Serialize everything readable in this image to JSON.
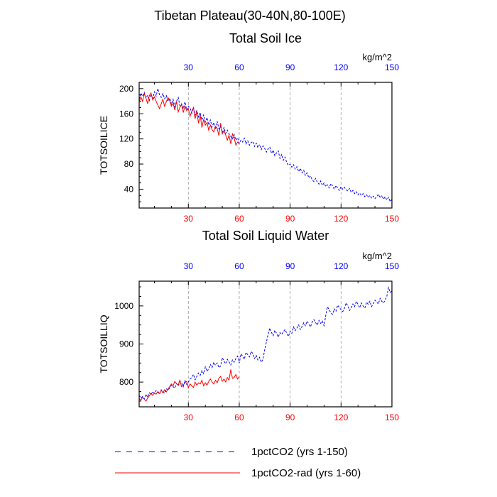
{
  "figure": {
    "main_title": "Tibetan Plateau(30-40N,80-100E)"
  },
  "chart_data": [
    {
      "type": "line",
      "title": "Total Soil Ice",
      "ylabel": "TOTSOILICE",
      "units": "kg/m^2",
      "xlim": [
        1,
        150
      ],
      "ylim": [
        10,
        210
      ],
      "xticks": [
        30,
        60,
        90,
        120,
        150
      ],
      "yticks": [
        40,
        80,
        120,
        160,
        200
      ],
      "top_axis_color": "#0000ff",
      "bottom_axis_color": "#ff0000",
      "grid_x": true,
      "series": [
        {
          "name": "1pctCO2 (yrs 1-150)",
          "color": "#0000ff",
          "dash": "dashed",
          "x": [
            1,
            2,
            3,
            4,
            5,
            6,
            7,
            8,
            9,
            10,
            11,
            12,
            13,
            14,
            15,
            16,
            17,
            18,
            19,
            20,
            21,
            22,
            23,
            24,
            25,
            26,
            27,
            28,
            29,
            30,
            31,
            32,
            33,
            34,
            35,
            36,
            37,
            38,
            39,
            40,
            41,
            42,
            43,
            44,
            45,
            46,
            47,
            48,
            49,
            50,
            51,
            52,
            53,
            54,
            55,
            56,
            57,
            58,
            59,
            60,
            61,
            62,
            63,
            64,
            65,
            66,
            67,
            68,
            69,
            70,
            71,
            72,
            73,
            74,
            75,
            76,
            77,
            78,
            79,
            80,
            81,
            82,
            83,
            84,
            85,
            86,
            87,
            88,
            89,
            90,
            91,
            92,
            93,
            94,
            95,
            96,
            97,
            98,
            99,
            100,
            101,
            102,
            103,
            104,
            105,
            106,
            107,
            108,
            109,
            110,
            111,
            112,
            113,
            114,
            115,
            116,
            117,
            118,
            119,
            120,
            121,
            122,
            123,
            124,
            125,
            126,
            127,
            128,
            129,
            130,
            131,
            132,
            133,
            134,
            135,
            136,
            137,
            138,
            139,
            140,
            141,
            142,
            143,
            144,
            145,
            146,
            147,
            148,
            149,
            150
          ],
          "y": [
            183,
            193,
            188,
            194,
            185,
            189,
            181,
            191,
            184,
            195,
            188,
            200,
            190,
            186,
            192,
            184,
            189,
            180,
            185,
            175,
            183,
            171,
            180,
            186,
            173,
            176,
            168,
            179,
            166,
            172,
            169,
            161,
            170,
            158,
            165,
            155,
            162,
            150,
            158,
            147,
            154,
            142,
            150,
            139,
            146,
            135,
            148,
            136,
            140,
            130,
            138,
            129,
            134,
            128,
            124,
            120,
            127,
            118,
            122,
            113,
            118,
            115,
            121,
            112,
            117,
            110,
            114,
            116,
            108,
            113,
            106,
            111,
            103,
            109,
            105,
            99,
            104,
            107,
            97,
            102,
            93,
            98,
            101,
            89,
            95,
            86,
            91,
            82,
            78,
            80,
            75,
            79,
            72,
            76,
            68,
            73,
            66,
            70,
            62,
            66,
            58,
            61,
            55,
            52,
            57,
            51,
            48,
            53,
            46,
            50,
            44,
            47,
            42,
            49,
            45,
            40,
            46,
            42,
            38,
            44,
            40,
            43,
            39,
            37,
            41,
            35,
            38,
            33,
            36,
            31,
            34,
            30,
            33,
            28,
            31,
            27,
            30,
            26,
            29,
            25,
            28,
            32,
            26,
            30,
            24,
            28,
            23,
            27,
            20,
            24
          ]
        },
        {
          "name": "1pctCO2-rad (yrs 1-60)",
          "color": "#ff0000",
          "dash": "solid",
          "x": [
            1,
            2,
            3,
            4,
            5,
            6,
            7,
            8,
            9,
            10,
            11,
            12,
            13,
            14,
            15,
            16,
            17,
            18,
            19,
            20,
            21,
            22,
            23,
            24,
            25,
            26,
            27,
            28,
            29,
            30,
            31,
            32,
            33,
            34,
            35,
            36,
            37,
            38,
            39,
            40,
            41,
            42,
            43,
            44,
            45,
            46,
            47,
            48,
            49,
            50,
            51,
            52,
            53,
            54,
            55,
            56,
            57,
            58,
            59,
            60
          ],
          "y": [
            178,
            187,
            180,
            192,
            185,
            176,
            189,
            193,
            182,
            187,
            180,
            174,
            168,
            176,
            183,
            172,
            179,
            186,
            181,
            172,
            177,
            166,
            180,
            163,
            170,
            175,
            162,
            172,
            165,
            168,
            156,
            164,
            170,
            152,
            163,
            145,
            158,
            138,
            151,
            142,
            146,
            134,
            142,
            135,
            131,
            140,
            137,
            125,
            145,
            128,
            133,
            126,
            118,
            126,
            112,
            128,
            122,
            110,
            115,
            112
          ]
        }
      ]
    },
    {
      "type": "line",
      "title": "Total Soil Liquid Water",
      "ylabel": "TOTSOILLIQ",
      "units": "kg/m^2",
      "xlim": [
        1,
        150
      ],
      "ylim": [
        735,
        1065
      ],
      "xticks": [
        30,
        60,
        90,
        120,
        150
      ],
      "yticks": [
        800,
        900,
        1000
      ],
      "top_axis_color": "#0000ff",
      "bottom_axis_color": "#ff0000",
      "grid_x": true,
      "series": [
        {
          "name": "1pctCO2 (yrs 1-150)",
          "color": "#0000ff",
          "dash": "dashed",
          "x": [
            1,
            2,
            3,
            4,
            5,
            6,
            7,
            8,
            9,
            10,
            11,
            12,
            13,
            14,
            15,
            16,
            17,
            18,
            19,
            20,
            21,
            22,
            23,
            24,
            25,
            26,
            27,
            28,
            29,
            30,
            31,
            32,
            33,
            34,
            35,
            36,
            37,
            38,
            39,
            40,
            41,
            42,
            43,
            44,
            45,
            46,
            47,
            48,
            49,
            50,
            51,
            52,
            53,
            54,
            55,
            56,
            57,
            58,
            59,
            60,
            61,
            62,
            63,
            64,
            65,
            66,
            67,
            68,
            69,
            70,
            71,
            72,
            73,
            74,
            75,
            76,
            77,
            78,
            79,
            80,
            81,
            82,
            83,
            84,
            85,
            86,
            87,
            88,
            89,
            90,
            91,
            92,
            93,
            94,
            95,
            96,
            97,
            98,
            99,
            100,
            101,
            102,
            103,
            104,
            105,
            106,
            107,
            108,
            109,
            110,
            111,
            112,
            113,
            114,
            115,
            116,
            117,
            118,
            119,
            120,
            121,
            122,
            123,
            124,
            125,
            126,
            127,
            128,
            129,
            130,
            131,
            132,
            133,
            134,
            135,
            136,
            137,
            138,
            139,
            140,
            141,
            142,
            143,
            144,
            145,
            146,
            147,
            148,
            149,
            150
          ],
          "y": [
            765,
            758,
            762,
            756,
            768,
            760,
            772,
            767,
            775,
            770,
            778,
            773,
            768,
            780,
            775,
            771,
            783,
            778,
            785,
            792,
            788,
            784,
            796,
            790,
            802,
            798,
            788,
            805,
            794,
            800,
            808,
            812,
            820,
            806,
            815,
            824,
            818,
            830,
            822,
            840,
            828,
            835,
            846,
            838,
            852,
            844,
            850,
            838,
            842,
            864,
            855,
            848,
            860,
            853,
            845,
            858,
            852,
            862,
            868,
            850,
            874,
            868,
            860,
            878,
            872,
            866,
            880,
            875,
            862,
            870,
            858,
            865,
            852,
            860,
            885,
            905,
            925,
            942,
            930,
            922,
            936,
            928,
            918,
            930,
            925,
            932,
            938,
            928,
            920,
            934,
            928,
            945,
            935,
            942,
            950,
            938,
            946,
            956,
            948,
            960,
            952,
            945,
            958,
            964,
            956,
            950,
            962,
            954,
            960,
            948,
            975,
            998,
            990,
            982,
            978,
            992,
            985,
            1002,
            996,
            990,
            985,
            994,
            1008,
            1000,
            988,
            995,
            1005,
            998,
            1012,
            1004,
            995,
            1008,
            1000,
            994,
            1010,
            1004,
            1012,
            998,
            1006,
            1015,
            1010,
            1005,
            1020,
            1012,
            1008,
            1015,
            1025,
            1048,
            1035,
            1040
          ]
        },
        {
          "name": "1pctCO2-rad (yrs 1-60)",
          "color": "#ff0000",
          "dash": "solid",
          "x": [
            1,
            2,
            3,
            4,
            5,
            6,
            7,
            8,
            9,
            10,
            11,
            12,
            13,
            14,
            15,
            16,
            17,
            18,
            19,
            20,
            21,
            22,
            23,
            24,
            25,
            26,
            27,
            28,
            29,
            30,
            31,
            32,
            33,
            34,
            35,
            36,
            37,
            38,
            39,
            40,
            41,
            42,
            43,
            44,
            45,
            46,
            47,
            48,
            49,
            50,
            51,
            52,
            53,
            54,
            55,
            56,
            57,
            58,
            59,
            60
          ],
          "y": [
            757,
            752,
            760,
            755,
            750,
            758,
            764,
            770,
            765,
            772,
            768,
            775,
            770,
            778,
            772,
            780,
            774,
            782,
            788,
            795,
            790,
            802,
            796,
            792,
            805,
            788,
            792,
            798,
            802,
            785,
            795,
            790,
            786,
            800,
            792,
            798,
            795,
            805,
            790,
            798,
            792,
            802,
            808,
            800,
            795,
            805,
            798,
            810,
            815,
            802,
            808,
            800,
            812,
            805,
            833,
            810,
            812,
            820,
            808,
            814
          ]
        }
      ]
    }
  ],
  "legend": {
    "placement": "bottom",
    "entries": [
      {
        "label": "1pctCO2 (yrs 1-150)",
        "color": "#0000ff",
        "dash": "dashed"
      },
      {
        "label": "1pctCO2-rad (yrs 1-60)",
        "color": "#ff0000",
        "dash": "solid"
      }
    ]
  }
}
